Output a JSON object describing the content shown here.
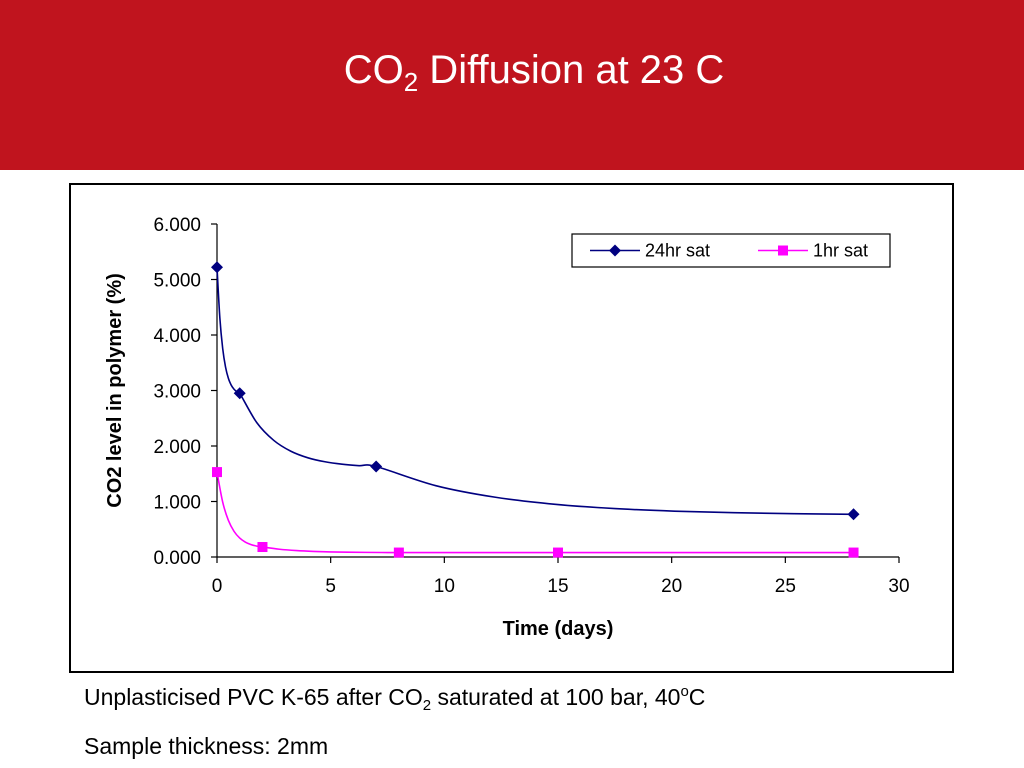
{
  "title": {
    "main": "CO",
    "sub": "2",
    "rest": " Diffusion at 23 C"
  },
  "captions": {
    "line1": {
      "a": "Unplasticised PVC K-65 after CO",
      "sub": "2",
      "b": " saturated at 100 bar, 40",
      "sup": "o",
      "c": "C"
    },
    "line2": "Sample thickness: 2mm"
  },
  "colors": {
    "header": "#c0141e",
    "series_24hr": "#000080",
    "series_1hr": "#ff00ff"
  },
  "chart_data": {
    "type": "line",
    "xlabel": "Time (days)",
    "ylabel": "CO2 level in polymer (%)",
    "xlim": [
      0,
      30
    ],
    "ylim": [
      0,
      6
    ],
    "xticks": [
      0,
      5,
      10,
      15,
      20,
      25,
      30
    ],
    "yticks": [
      "0.000",
      "1.000",
      "2.000",
      "3.000",
      "4.000",
      "5.000",
      "6.000"
    ],
    "legend_position": "top-right",
    "series": [
      {
        "name": "24hr sat",
        "marker": "diamond",
        "x": [
          0,
          1,
          7,
          28
        ],
        "y": [
          5.22,
          2.95,
          1.63,
          0.77
        ]
      },
      {
        "name": "1hr sat",
        "marker": "square",
        "x": [
          0,
          2,
          8,
          15,
          28
        ],
        "y": [
          1.53,
          0.18,
          0.08,
          0.08,
          0.08
        ]
      }
    ]
  }
}
